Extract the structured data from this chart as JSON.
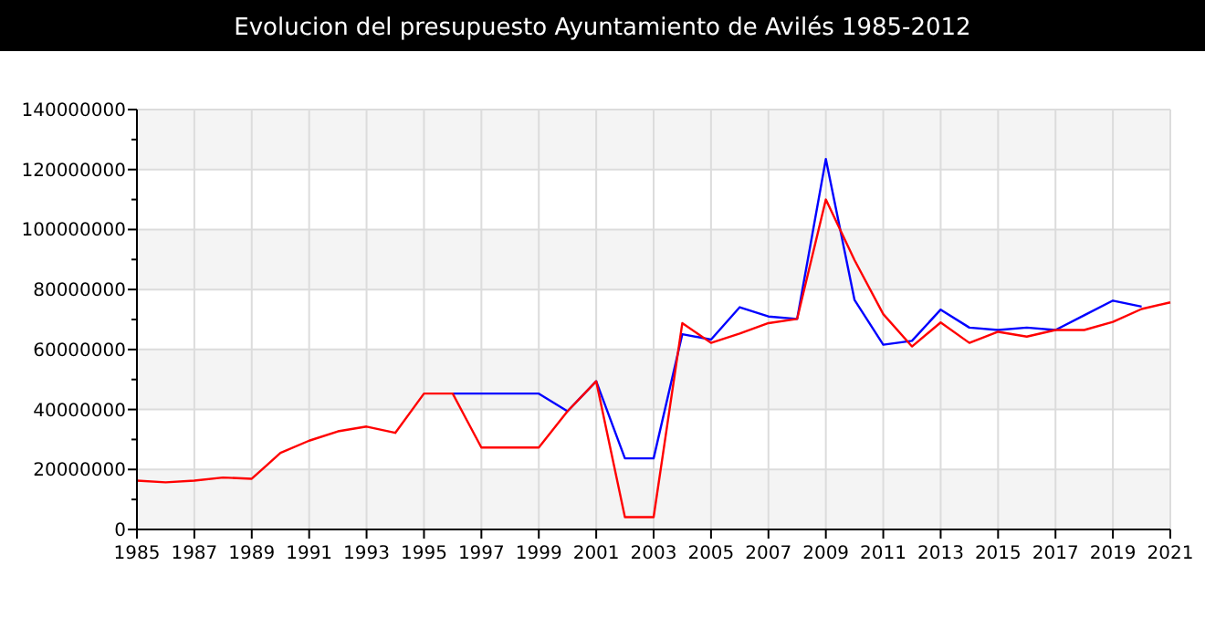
{
  "chart_data": {
    "type": "line",
    "title": "Evolucion del presupuesto Ayuntamiento de Avilés 1985-2012",
    "x": [
      1985,
      1986,
      1987,
      1988,
      1989,
      1990,
      1991,
      1992,
      1993,
      1994,
      1995,
      1996,
      1997,
      1998,
      1999,
      2000,
      2001,
      2002,
      2003,
      2004,
      2005,
      2006,
      2007,
      2008,
      2009,
      2010,
      2011,
      2012,
      2013,
      2014,
      2015,
      2016,
      2017,
      2018,
      2019,
      2020,
      2021
    ],
    "series": [
      {
        "color": "#0000ff",
        "values": [
          null,
          null,
          null,
          null,
          null,
          null,
          null,
          null,
          null,
          null,
          null,
          45300000,
          45300000,
          45300000,
          45300000,
          39400000,
          49400000,
          23700000,
          23700000,
          65100000,
          63300000,
          74100000,
          71000000,
          70200000,
          123500000,
          76500000,
          61600000,
          62900000,
          73300000,
          67300000,
          66500000,
          67300000,
          66500000,
          71400000,
          76300000,
          74300000,
          null
        ]
      },
      {
        "color": "#ff0000",
        "values": [
          16300000,
          15700000,
          16300000,
          17300000,
          16900000,
          25500000,
          29600000,
          32700000,
          34300000,
          32200000,
          45300000,
          45300000,
          27300000,
          27300000,
          27300000,
          39400000,
          49400000,
          4100000,
          4100000,
          68800000,
          62200000,
          65300000,
          68800000,
          70200000,
          110000000,
          89800000,
          71800000,
          61000000,
          69000000,
          62200000,
          65900000,
          64300000,
          66500000,
          66500000,
          69200000,
          73500000,
          75700000
        ]
      }
    ],
    "xlim": [
      1985,
      2021
    ],
    "xticks": [
      1985,
      1987,
      1989,
      1991,
      1993,
      1995,
      1997,
      1999,
      2001,
      2003,
      2005,
      2007,
      2009,
      2011,
      2013,
      2015,
      2017,
      2019,
      2021
    ],
    "ylim": [
      0,
      140000000
    ],
    "yticks": [
      0,
      {
        "value": 10000000,
        "label": null
      },
      20000000,
      {
        "value": 30000000,
        "label": null
      },
      40000000,
      {
        "value": 50000000,
        "label": null
      },
      60000000,
      {
        "value": 70000000,
        "label": null
      },
      80000000,
      {
        "value": 90000000,
        "label": null
      },
      100000000,
      {
        "value": 110000000,
        "label": null
      },
      120000000,
      {
        "value": 130000000,
        "label": null
      },
      140000000
    ],
    "grid": true,
    "marker": "none",
    "line_style": "solid"
  }
}
